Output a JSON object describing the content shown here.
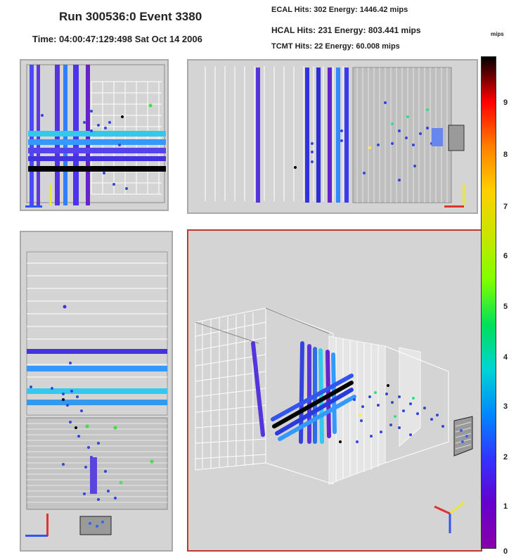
{
  "header": {
    "title": "Run 300536:0 Event 3380",
    "time": "Time: 04:00:47:129:498 Sat Oct 14 2006",
    "ecal": "ECAL Hits: 302  Energy: 1446.42 mips",
    "hcal": "HCAL Hits: 231  Energy: 803.441 mips",
    "tcmt": "TCMT Hits: 22  Energy: 60.008 mips"
  },
  "colorbar": {
    "unit": "mips",
    "ticks": [
      "9",
      "8",
      "7",
      "6",
      "5",
      "4",
      "3",
      "2",
      "1",
      "0"
    ],
    "gradient": [
      "#000000",
      "#ff0000",
      "#ff7f00",
      "#ffd000",
      "#c8e600",
      "#7fff00",
      "#00e05a",
      "#00d4d4",
      "#0088ff",
      "#3333ff",
      "#6600cc",
      "#8800aa"
    ]
  },
  "views": {
    "front": "front-view",
    "side": "side-view",
    "top": "top-view",
    "perspective": "3d-view"
  }
}
